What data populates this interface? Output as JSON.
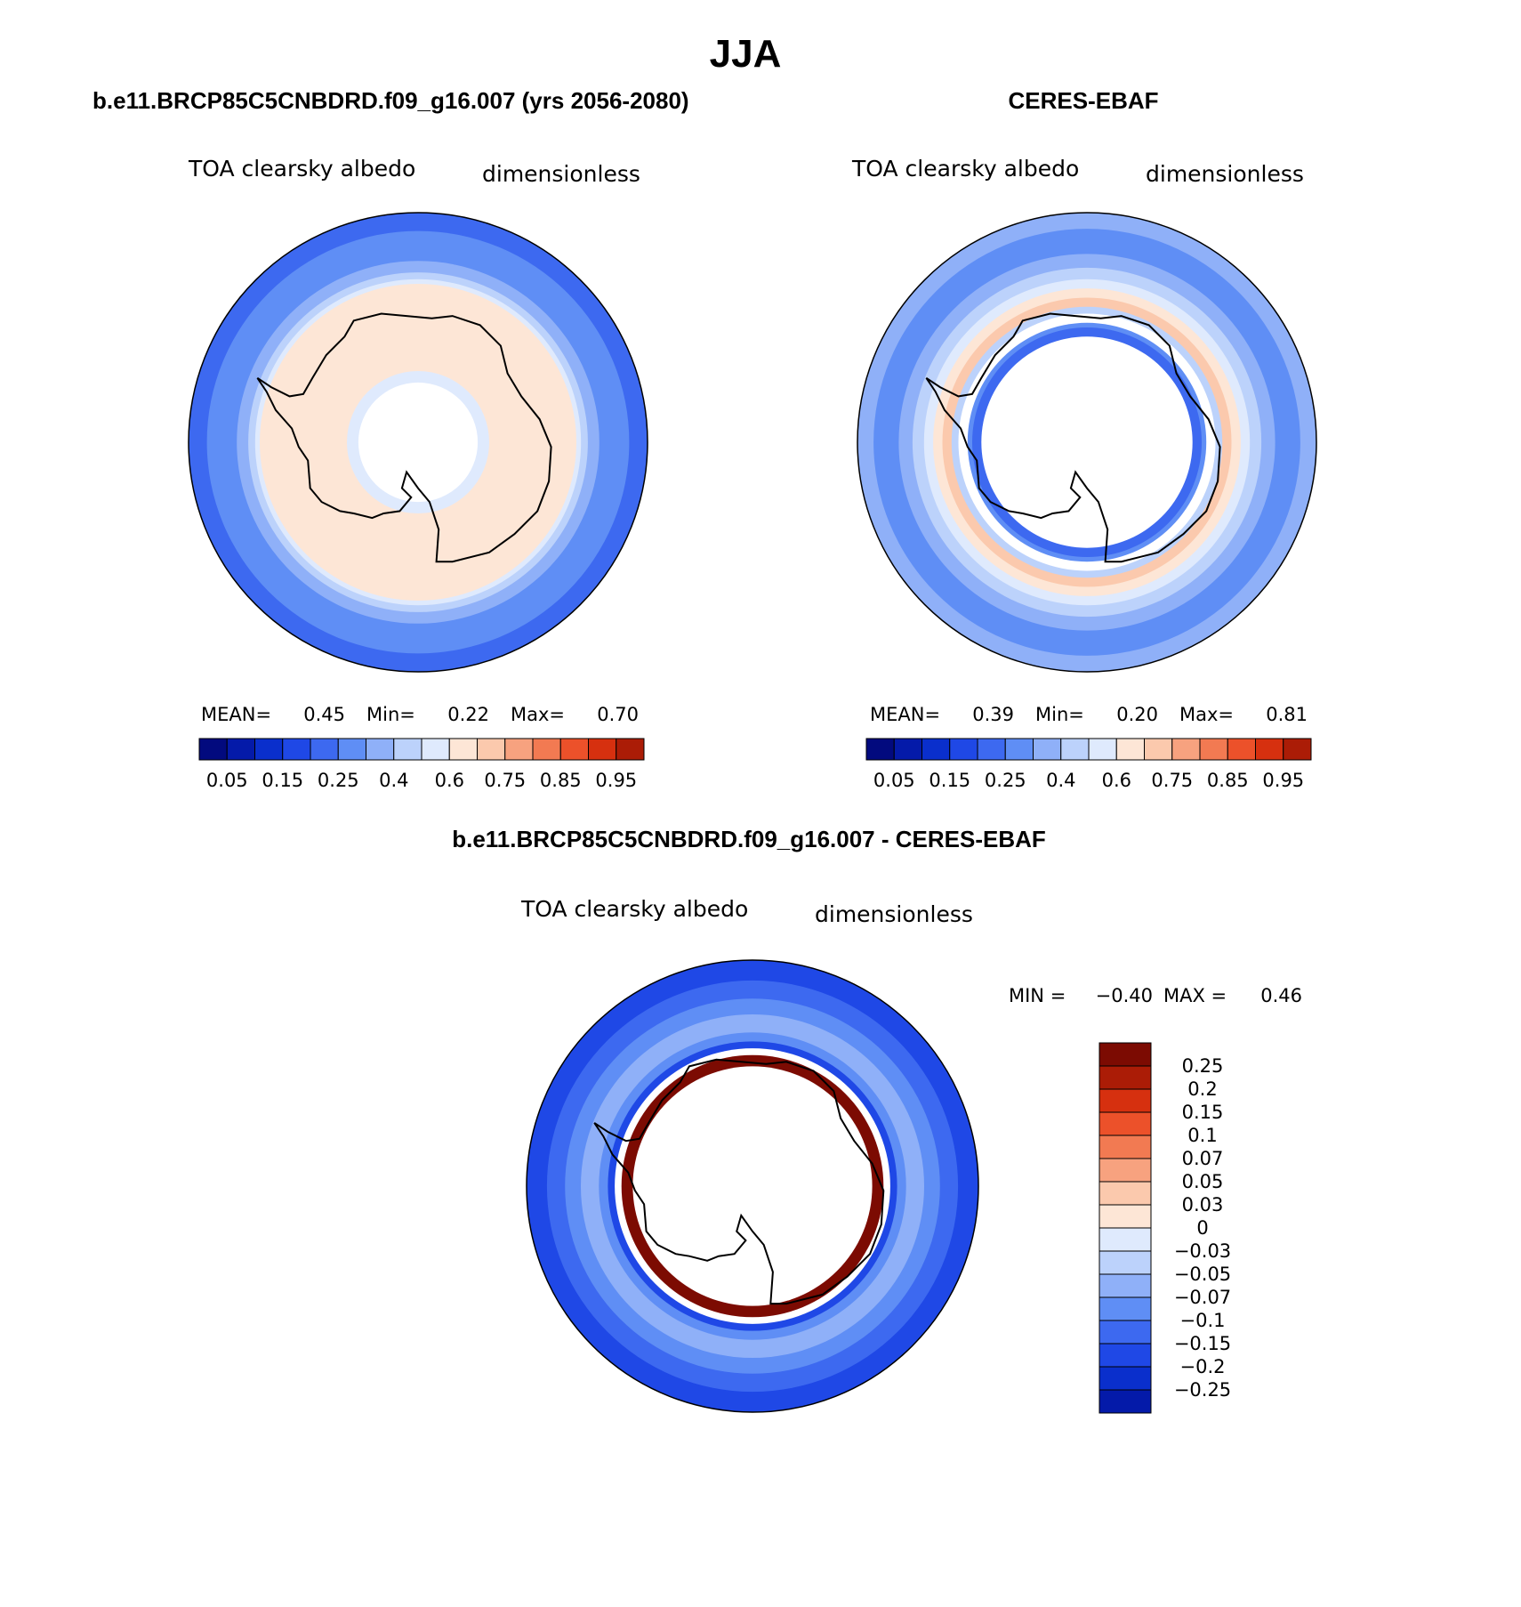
{
  "chart_data": {
    "type": "map",
    "title": "JJA",
    "panels": [
      {
        "id": "model",
        "title": "b.e11.BRCP85C5CNBDRD.f09_g16.007 (yrs 2056-2080)",
        "variable": "TOA clearsky albedo",
        "units": "dimensionless",
        "stats_labels": [
          "MEAN=",
          "0.45",
          "Min=",
          "0.22",
          "Max=",
          "0.70"
        ],
        "colorbar_ticks": [
          "0.05",
          "0.15",
          "0.25",
          "0.4",
          "0.6",
          "0.75",
          "0.85",
          "0.95"
        ],
        "bands": [
          {
            "outer": 1.0,
            "level": 4
          },
          {
            "outer": 0.92,
            "level": 5
          },
          {
            "outer": 0.79,
            "level": 6
          },
          {
            "outer": 0.74,
            "level": 7
          },
          {
            "outer": 0.71,
            "level": 8
          },
          {
            "outer": 0.69,
            "level": 9
          },
          {
            "outer": 0.31,
            "level": 8
          },
          {
            "outer": 0.26,
            "level": -1
          }
        ]
      },
      {
        "id": "obs",
        "title": "CERES-EBAF",
        "variable": "TOA clearsky albedo",
        "units": "dimensionless",
        "stats_labels": [
          "MEAN=",
          "0.39",
          "Min=",
          "0.20",
          "Max=",
          "0.81"
        ],
        "colorbar_ticks": [
          "0.05",
          "0.15",
          "0.25",
          "0.4",
          "0.6",
          "0.75",
          "0.85",
          "0.95"
        ],
        "bands": [
          {
            "outer": 1.0,
            "level": 6
          },
          {
            "outer": 0.93,
            "level": 5
          },
          {
            "outer": 0.82,
            "level": 6
          },
          {
            "outer": 0.76,
            "level": 7
          },
          {
            "outer": 0.71,
            "level": 8
          },
          {
            "outer": 0.67,
            "level": 9
          },
          {
            "outer": 0.63,
            "level": 10
          },
          {
            "outer": 0.59,
            "level": 7
          },
          {
            "outer": 0.56,
            "level": -1
          },
          {
            "outer": 0.52,
            "level": 5
          },
          {
            "outer": 0.5,
            "level": 4
          },
          {
            "outer": 0.46,
            "level": -1
          }
        ]
      },
      {
        "id": "diff",
        "title": "b.e11.BRCP85C5CNBDRD.f09_g16.007 - CERES-EBAF",
        "variable": "TOA clearsky albedo",
        "units": "dimensionless",
        "stats_labels": [
          "MIN =",
          "−0.40",
          "MAX =",
          "0.46"
        ],
        "colorbar_ticks": [
          "0.25",
          "0.2",
          "0.15",
          "0.1",
          "0.07",
          "0.05",
          "0.03",
          "0",
          "−0.03",
          "−0.05",
          "−0.07",
          "−0.1",
          "−0.15",
          "−0.2",
          "−0.25"
        ],
        "bands": [
          {
            "outer": 1.0,
            "level": 13
          },
          {
            "outer": 0.91,
            "level": 12
          },
          {
            "outer": 0.83,
            "level": 11
          },
          {
            "outer": 0.76,
            "level": 10
          },
          {
            "outer": 0.68,
            "level": 11
          },
          {
            "outer": 0.64,
            "level": 13
          },
          {
            "outer": 0.61,
            "level": -1
          },
          {
            "outer": 0.58,
            "level": 0
          },
          {
            "outer": 0.53,
            "level": -1
          },
          {
            "outer": 0.5,
            "level": -1
          }
        ]
      }
    ],
    "abs_colorbar_levels": 16,
    "diff_colorbar_levels": 16
  },
  "colors": {
    "abs_palette": [
      "#020a7e",
      "#041aa9",
      "#0a2fcc",
      "#1f48e6",
      "#3d69f0",
      "#5f8ef5",
      "#8fb0f8",
      "#bcd2fb",
      "#dfeafd",
      "#fde6d6",
      "#fbc9ad",
      "#f7a27f",
      "#f27a52",
      "#ec512a",
      "#d6300f",
      "#ab1c06",
      "#7c0b02"
    ],
    "diff_palette": [
      "#7c0b02",
      "#ab1c06",
      "#d6300f",
      "#ec512a",
      "#f27a52",
      "#f7a27f",
      "#fbc9ad",
      "#fde6d6",
      "#dfeafd",
      "#bcd2fb",
      "#8fb0f8",
      "#5f8ef5",
      "#3d69f0",
      "#1f48e6",
      "#0a2fcc",
      "#041aa9",
      "#020a7e"
    ],
    "land_outline": "#000000"
  }
}
